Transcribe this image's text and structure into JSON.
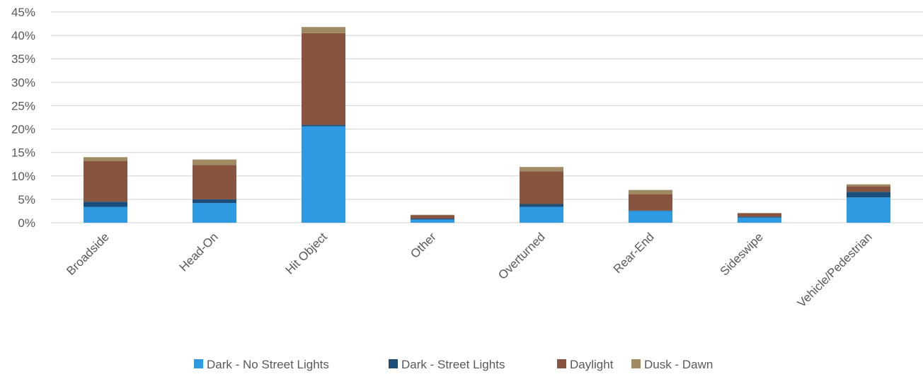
{
  "chart_data": {
    "type": "bar",
    "stacked": true,
    "categories": [
      "Broadside",
      "Head-On",
      "Hit Object",
      "Other",
      "Overturned",
      "Rear-End",
      "Sideswipe",
      "Vehicle/Pedestrian"
    ],
    "series": [
      {
        "name": "Dark - No Street Lights",
        "color": "#2E9AE2",
        "values": [
          3.4,
          4.2,
          20.6,
          0.7,
          3.4,
          2.5,
          1.1,
          5.4
        ]
      },
      {
        "name": "Dark - Street Lights",
        "color": "#1C4E7A",
        "values": [
          1.1,
          0.8,
          0.3,
          0.2,
          0.6,
          0.1,
          0.2,
          1.2
        ]
      },
      {
        "name": "Daylight",
        "color": "#87553F",
        "values": [
          8.7,
          7.3,
          19.6,
          0.7,
          7.0,
          3.5,
          0.7,
          1.2
        ]
      },
      {
        "name": "Dusk - Dawn",
        "color": "#A08A62",
        "values": [
          0.8,
          1.2,
          1.3,
          0.1,
          0.9,
          0.9,
          0.1,
          0.4
        ]
      }
    ],
    "yticks": [
      "0%",
      "5%",
      "10%",
      "15%",
      "20%",
      "25%",
      "30%",
      "35%",
      "40%",
      "45%"
    ],
    "ylim": [
      0,
      45
    ],
    "grid": true,
    "legend": "bottom-center",
    "title": "",
    "xlabel": "",
    "ylabel": ""
  }
}
